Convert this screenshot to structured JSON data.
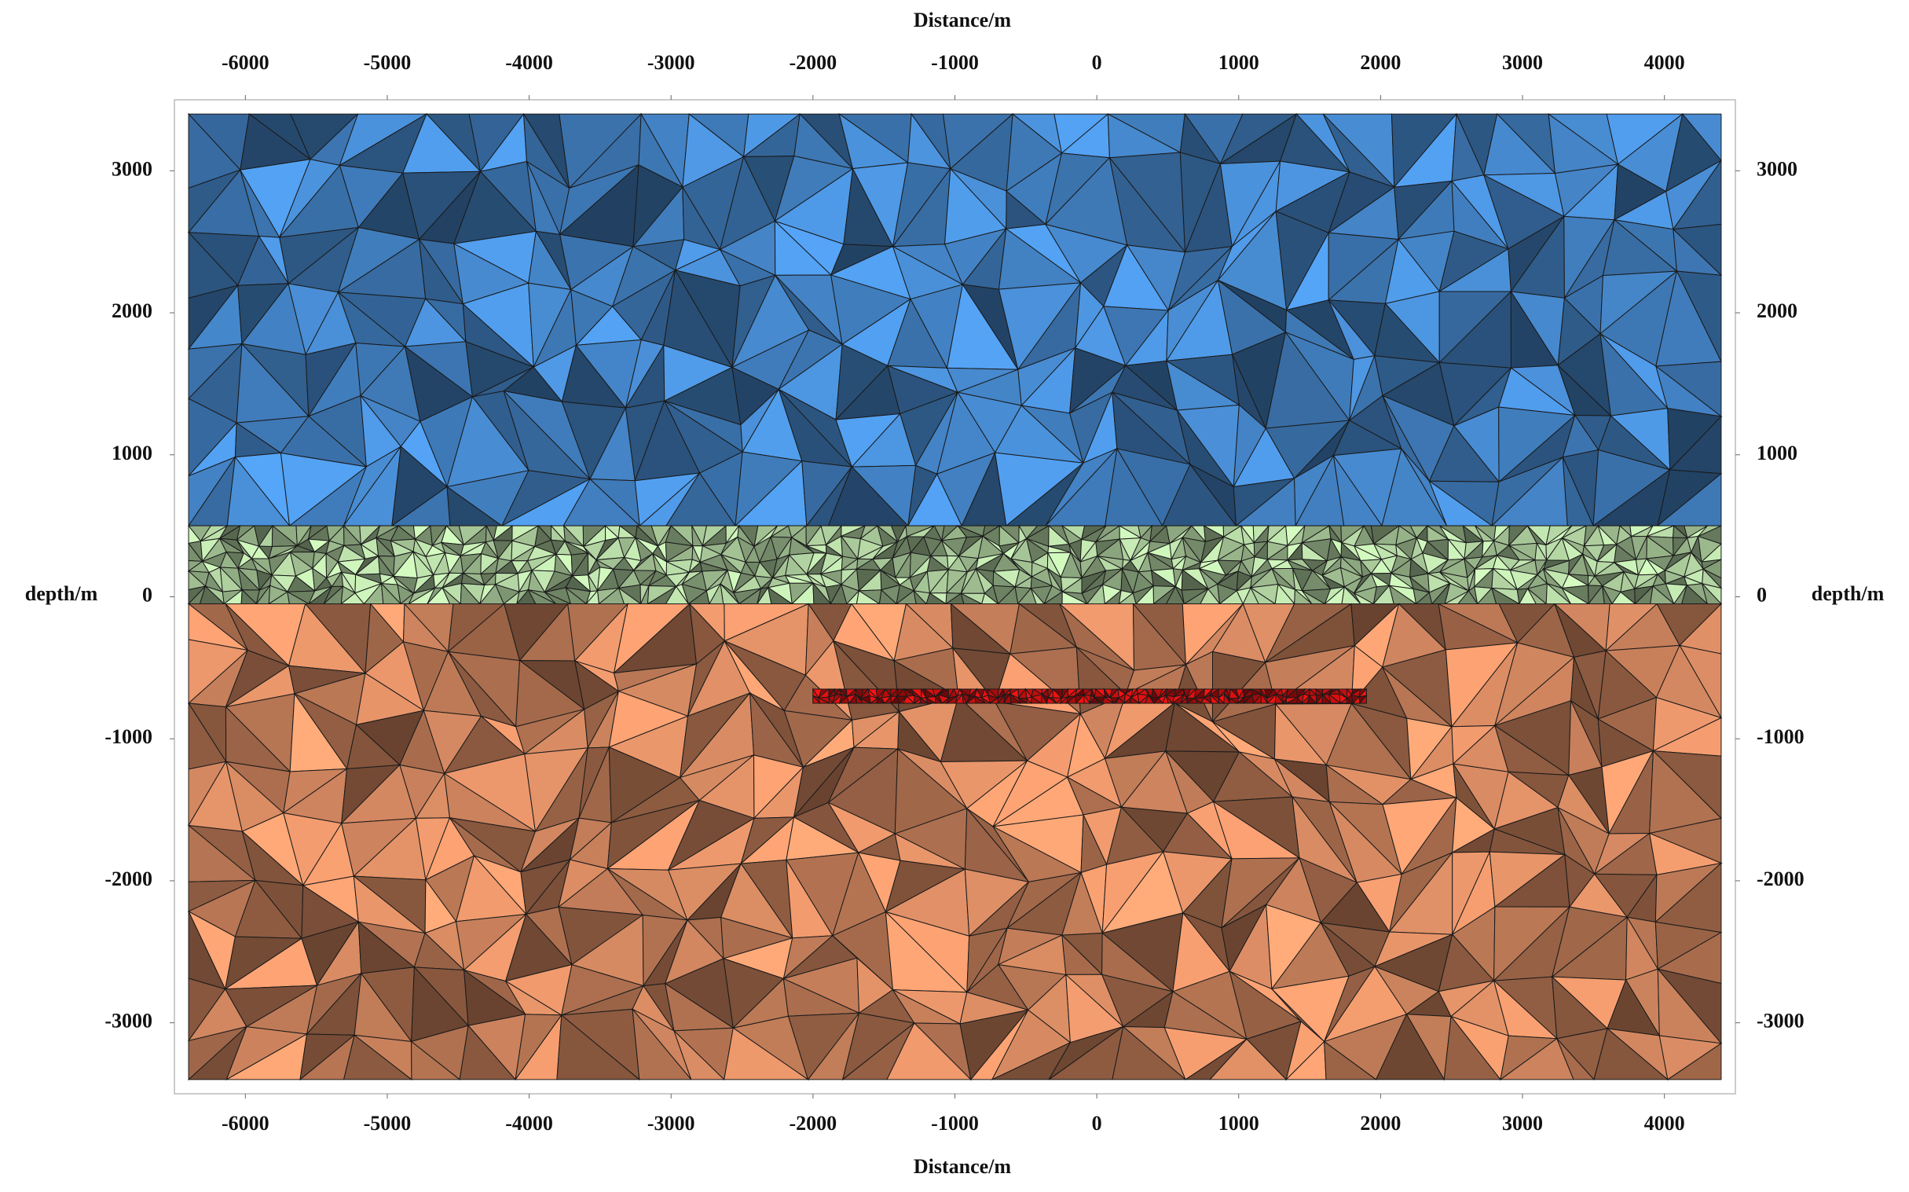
{
  "chart_data": {
    "type": "mesh",
    "x_label": "Distance/m",
    "y_label": "depth/m",
    "xlim": [
      -6500,
      4500
    ],
    "ylim": [
      -3500,
      3500
    ],
    "xticks": [
      -6000,
      -5000,
      -4000,
      -3000,
      -2000,
      -1000,
      0,
      1000,
      2000,
      3000,
      4000
    ],
    "yticks": [
      -3000,
      -2000,
      -1000,
      0,
      1000,
      2000,
      3000
    ],
    "mesh_xlim": [
      -6400,
      4400
    ],
    "regions": [
      {
        "top": 3400,
        "bottom": 500,
        "color": "#4a90d9"
      },
      {
        "top": 500,
        "bottom": -50,
        "color": "#b9dca8"
      },
      {
        "top": -50,
        "bottom": -3400,
        "color": "#e8956a"
      }
    ],
    "body": {
      "x": [
        -2000,
        1900
      ],
      "y": [
        -650,
        -750
      ],
      "color": "#e01010"
    }
  }
}
